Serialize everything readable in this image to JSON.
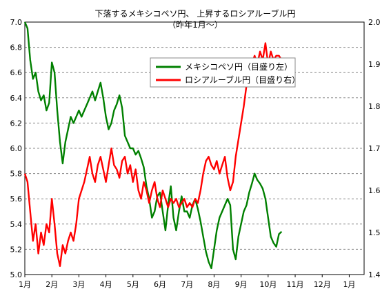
{
  "chart_data": {
    "type": "line",
    "title": "下落するメキシコペソ円、 上昇するロシアルーブル円",
    "subtitle": "（昨年1月～）",
    "x_ticks": [
      "1月",
      "2月",
      "3月",
      "4月",
      "5月",
      "6月",
      "7月",
      "8月",
      "9月",
      "10月",
      "11月",
      "12月",
      "1月"
    ],
    "y_left": {
      "min": 5.0,
      "max": 7.0,
      "step": 0.2,
      "ticks": [
        "5.0",
        "5.2",
        "5.4",
        "5.6",
        "5.8",
        "6.0",
        "6.2",
        "6.4",
        "6.6",
        "6.8",
        "7.0"
      ]
    },
    "y_right": {
      "min": 1.4,
      "max": 2.0,
      "step": 0.1,
      "ticks": [
        "1.4",
        "1.5",
        "1.6",
        "1.7",
        "1.8",
        "1.9",
        "2.0"
      ]
    },
    "grid": true,
    "legend_position": "upper-right",
    "series": [
      {
        "name": "メキシコペソ円（目盛り左）",
        "axis": "left",
        "color": "#008000",
        "points": [
          [
            0.0,
            7.0
          ],
          [
            0.1,
            6.95
          ],
          [
            0.2,
            6.7
          ],
          [
            0.3,
            6.55
          ],
          [
            0.4,
            6.6
          ],
          [
            0.5,
            6.45
          ],
          [
            0.6,
            6.38
          ],
          [
            0.7,
            6.42
          ],
          [
            0.8,
            6.3
          ],
          [
            0.9,
            6.36
          ],
          [
            1.0,
            6.68
          ],
          [
            1.1,
            6.6
          ],
          [
            1.2,
            6.3
          ],
          [
            1.3,
            6.05
          ],
          [
            1.4,
            5.88
          ],
          [
            1.5,
            6.05
          ],
          [
            1.6,
            6.15
          ],
          [
            1.7,
            6.25
          ],
          [
            1.8,
            6.2
          ],
          [
            1.9,
            6.25
          ],
          [
            2.0,
            6.3
          ],
          [
            2.1,
            6.25
          ],
          [
            2.2,
            6.3
          ],
          [
            2.3,
            6.35
          ],
          [
            2.4,
            6.4
          ],
          [
            2.5,
            6.45
          ],
          [
            2.6,
            6.38
          ],
          [
            2.7,
            6.45
          ],
          [
            2.8,
            6.52
          ],
          [
            2.9,
            6.4
          ],
          [
            3.0,
            6.25
          ],
          [
            3.1,
            6.15
          ],
          [
            3.2,
            6.2
          ],
          [
            3.3,
            6.3
          ],
          [
            3.4,
            6.35
          ],
          [
            3.5,
            6.42
          ],
          [
            3.6,
            6.32
          ],
          [
            3.7,
            6.1
          ],
          [
            3.8,
            6.05
          ],
          [
            3.9,
            6.0
          ],
          [
            4.0,
            6.0
          ],
          [
            4.1,
            5.95
          ],
          [
            4.2,
            5.98
          ],
          [
            4.3,
            5.92
          ],
          [
            4.4,
            5.85
          ],
          [
            4.5,
            5.7
          ],
          [
            4.6,
            5.6
          ],
          [
            4.7,
            5.45
          ],
          [
            4.8,
            5.5
          ],
          [
            4.9,
            5.62
          ],
          [
            5.0,
            5.65
          ],
          [
            5.1,
            5.5
          ],
          [
            5.2,
            5.35
          ],
          [
            5.3,
            5.55
          ],
          [
            5.4,
            5.7
          ],
          [
            5.5,
            5.45
          ],
          [
            5.6,
            5.35
          ],
          [
            5.7,
            5.5
          ],
          [
            5.8,
            5.62
          ],
          [
            5.9,
            5.5
          ],
          [
            6.0,
            5.5
          ],
          [
            6.1,
            5.45
          ],
          [
            6.2,
            5.55
          ],
          [
            6.3,
            5.6
          ],
          [
            6.4,
            5.52
          ],
          [
            6.5,
            5.42
          ],
          [
            6.6,
            5.3
          ],
          [
            6.7,
            5.18
          ],
          [
            6.8,
            5.1
          ],
          [
            6.9,
            5.05
          ],
          [
            7.0,
            5.2
          ],
          [
            7.1,
            5.35
          ],
          [
            7.2,
            5.45
          ],
          [
            7.3,
            5.5
          ],
          [
            7.4,
            5.55
          ],
          [
            7.5,
            5.6
          ],
          [
            7.6,
            5.55
          ],
          [
            7.7,
            5.2
          ],
          [
            7.8,
            5.12
          ],
          [
            7.9,
            5.3
          ],
          [
            8.0,
            5.4
          ],
          [
            8.1,
            5.5
          ],
          [
            8.2,
            5.55
          ],
          [
            8.3,
            5.65
          ],
          [
            8.4,
            5.72
          ],
          [
            8.5,
            5.8
          ],
          [
            8.6,
            5.75
          ],
          [
            8.7,
            5.72
          ],
          [
            8.8,
            5.68
          ],
          [
            8.9,
            5.6
          ],
          [
            9.0,
            5.45
          ],
          [
            9.1,
            5.3
          ],
          [
            9.2,
            5.25
          ],
          [
            9.3,
            5.22
          ],
          [
            9.4,
            5.32
          ],
          [
            9.5,
            5.34
          ]
        ]
      },
      {
        "name": "ロシアルーブル円（目盛り右）",
        "axis": "right",
        "color": "#ff0000",
        "points": [
          [
            0.0,
            1.64
          ],
          [
            0.1,
            1.62
          ],
          [
            0.2,
            1.55
          ],
          [
            0.3,
            1.48
          ],
          [
            0.4,
            1.52
          ],
          [
            0.5,
            1.45
          ],
          [
            0.6,
            1.5
          ],
          [
            0.7,
            1.47
          ],
          [
            0.8,
            1.52
          ],
          [
            0.9,
            1.5
          ],
          [
            1.0,
            1.58
          ],
          [
            1.1,
            1.52
          ],
          [
            1.2,
            1.45
          ],
          [
            1.3,
            1.42
          ],
          [
            1.4,
            1.47
          ],
          [
            1.5,
            1.45
          ],
          [
            1.6,
            1.48
          ],
          [
            1.7,
            1.5
          ],
          [
            1.8,
            1.48
          ],
          [
            1.9,
            1.52
          ],
          [
            2.0,
            1.58
          ],
          [
            2.1,
            1.6
          ],
          [
            2.2,
            1.62
          ],
          [
            2.3,
            1.65
          ],
          [
            2.4,
            1.68
          ],
          [
            2.5,
            1.64
          ],
          [
            2.6,
            1.62
          ],
          [
            2.7,
            1.66
          ],
          [
            2.8,
            1.68
          ],
          [
            2.9,
            1.65
          ],
          [
            3.0,
            1.62
          ],
          [
            3.1,
            1.66
          ],
          [
            3.2,
            1.7
          ],
          [
            3.3,
            1.66
          ],
          [
            3.4,
            1.65
          ],
          [
            3.5,
            1.63
          ],
          [
            3.6,
            1.67
          ],
          [
            3.7,
            1.68
          ],
          [
            3.8,
            1.64
          ],
          [
            3.9,
            1.66
          ],
          [
            4.0,
            1.62
          ],
          [
            4.1,
            1.65
          ],
          [
            4.2,
            1.6
          ],
          [
            4.3,
            1.58
          ],
          [
            4.4,
            1.62
          ],
          [
            4.5,
            1.6
          ],
          [
            4.6,
            1.57
          ],
          [
            4.7,
            1.6
          ],
          [
            4.8,
            1.62
          ],
          [
            4.9,
            1.58
          ],
          [
            5.0,
            1.56
          ],
          [
            5.1,
            1.6
          ],
          [
            5.2,
            1.58
          ],
          [
            5.3,
            1.56
          ],
          [
            5.4,
            1.58
          ],
          [
            5.5,
            1.57
          ],
          [
            5.6,
            1.58
          ],
          [
            5.7,
            1.56
          ],
          [
            5.8,
            1.57
          ],
          [
            5.9,
            1.58
          ],
          [
            6.0,
            1.56
          ],
          [
            6.1,
            1.57
          ],
          [
            6.2,
            1.56
          ],
          [
            6.3,
            1.58
          ],
          [
            6.4,
            1.57
          ],
          [
            6.5,
            1.6
          ],
          [
            6.6,
            1.64
          ],
          [
            6.7,
            1.67
          ],
          [
            6.8,
            1.68
          ],
          [
            6.9,
            1.66
          ],
          [
            7.0,
            1.65
          ],
          [
            7.1,
            1.67
          ],
          [
            7.2,
            1.64
          ],
          [
            7.3,
            1.66
          ],
          [
            7.4,
            1.68
          ],
          [
            7.5,
            1.63
          ],
          [
            7.6,
            1.6
          ],
          [
            7.7,
            1.62
          ],
          [
            7.8,
            1.68
          ],
          [
            7.9,
            1.72
          ],
          [
            8.0,
            1.76
          ],
          [
            8.1,
            1.8
          ],
          [
            8.2,
            1.85
          ],
          [
            8.3,
            1.88
          ],
          [
            8.4,
            1.9
          ],
          [
            8.5,
            1.92
          ],
          [
            8.6,
            1.9
          ],
          [
            8.7,
            1.93
          ],
          [
            8.8,
            1.91
          ],
          [
            8.9,
            1.95
          ],
          [
            9.0,
            1.9
          ],
          [
            9.1,
            1.93
          ],
          [
            9.2,
            1.91
          ],
          [
            9.3,
            1.92
          ],
          [
            9.4,
            1.92
          ],
          [
            9.5,
            1.91
          ]
        ]
      }
    ]
  }
}
